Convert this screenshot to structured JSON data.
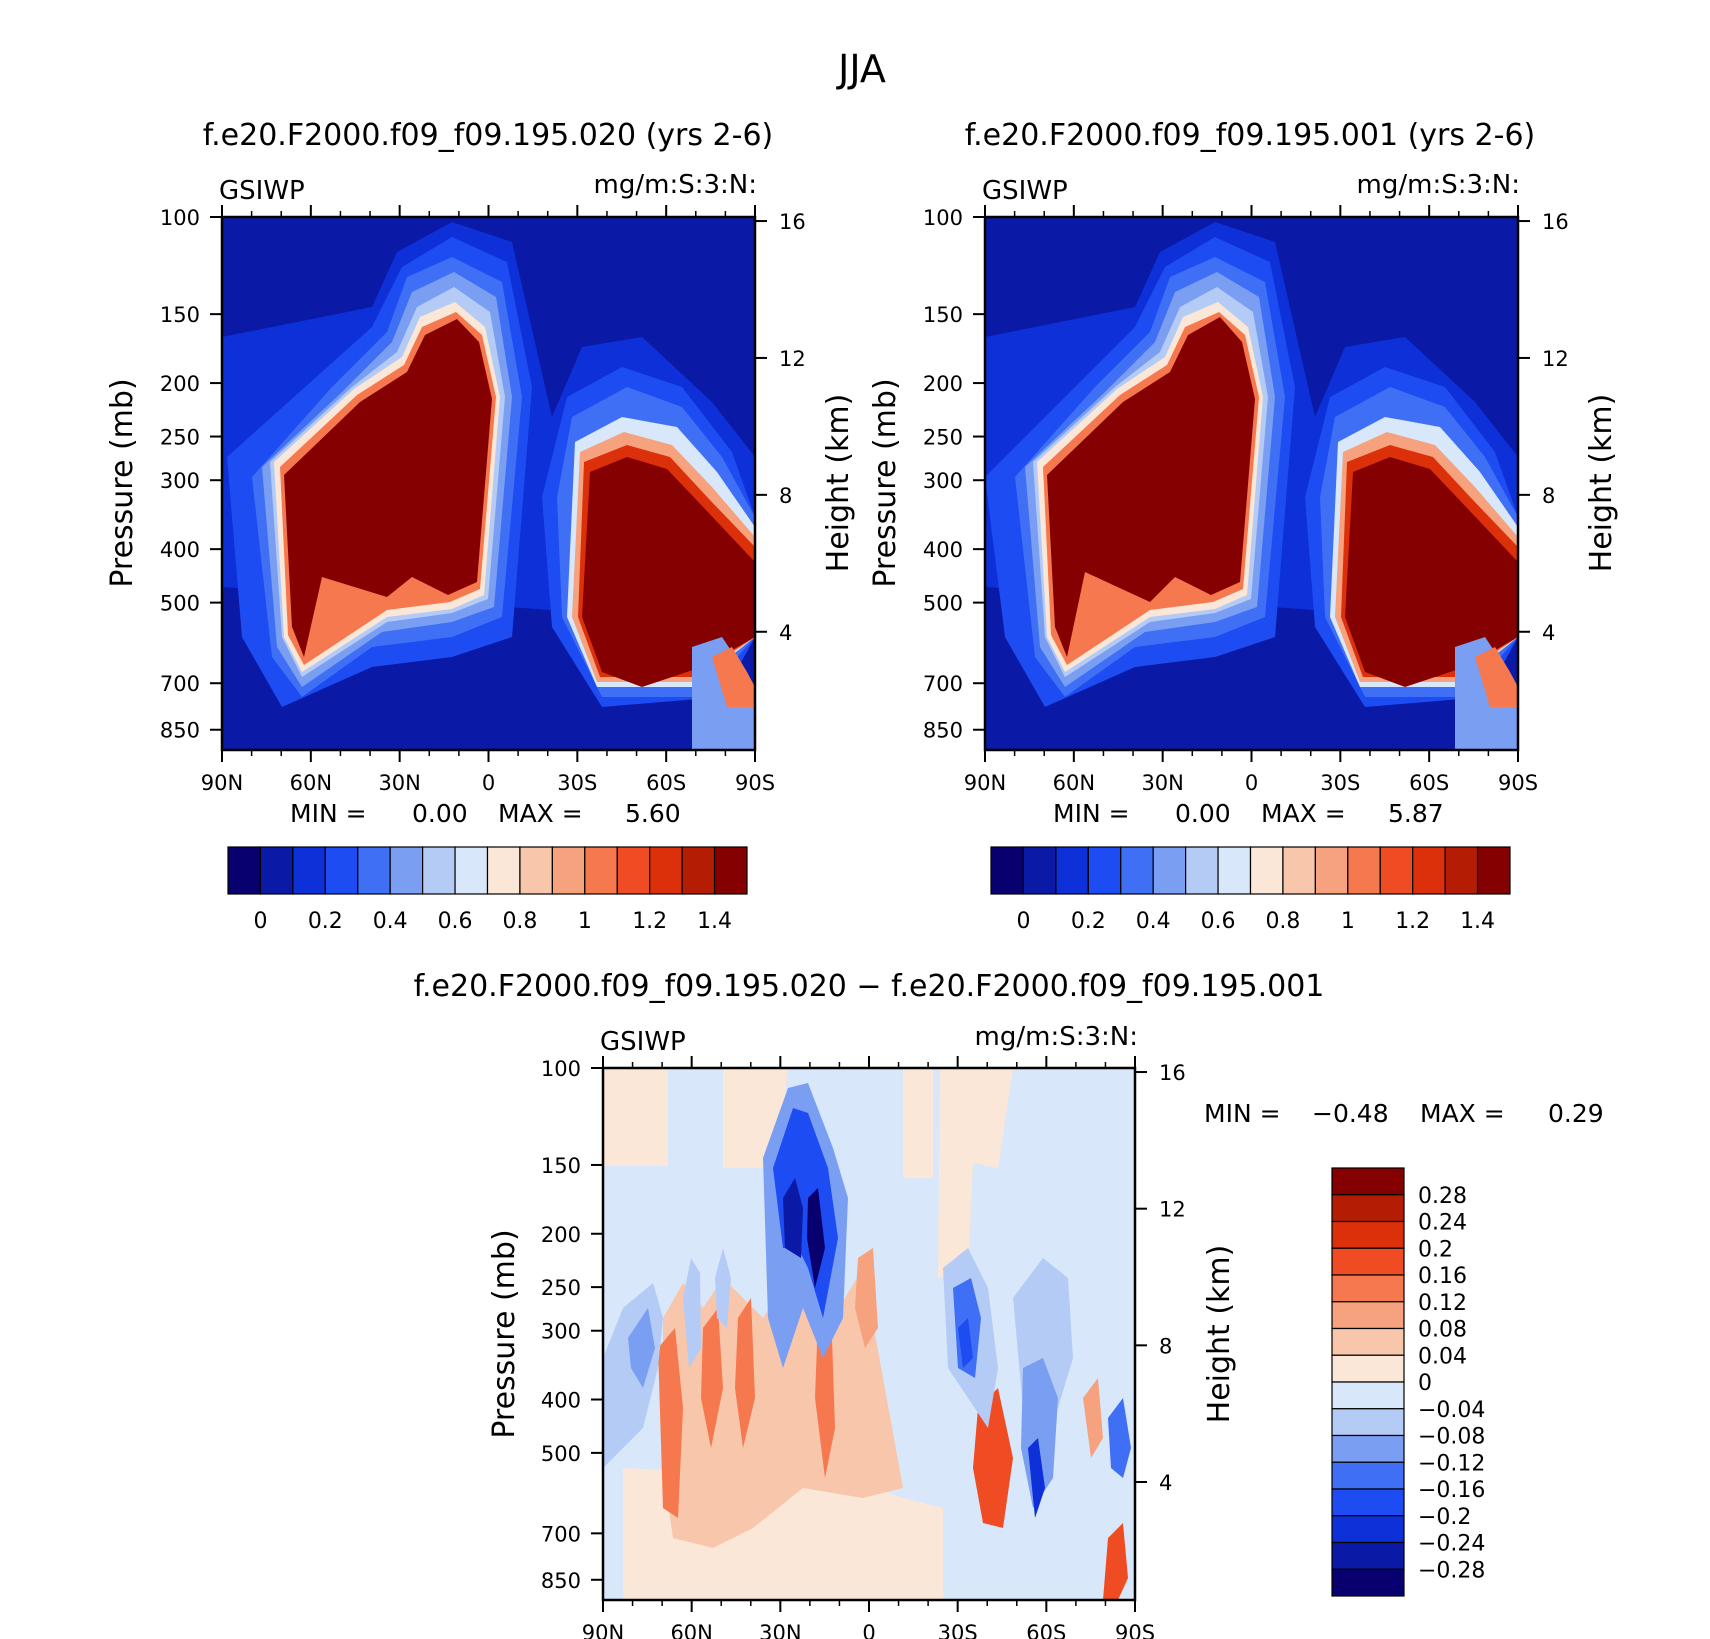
{
  "figure_title": "JJA",
  "ticks": {
    "pressure": [
      "100",
      "150",
      "200",
      "250",
      "300",
      "400",
      "500",
      "700",
      "850"
    ],
    "height": [
      "16",
      "12",
      "8",
      "4"
    ],
    "lat": [
      "90N",
      "60N",
      "30N",
      "0",
      "30S",
      "60S",
      "90S"
    ],
    "pressure_label": "Pressure (mb)",
    "height_label": "Height (km)"
  },
  "colors": {
    "seq": [
      "#08006e",
      "#0a1aa6",
      "#0d30d8",
      "#1c4cf2",
      "#3f6ff5",
      "#7a9ef2",
      "#b4cbf6",
      "#d9e7fa",
      "#fbe7d7",
      "#f8c6ab",
      "#f6a27e",
      "#f5784f",
      "#f04c24",
      "#dc300a",
      "#b41d04",
      "#850000"
    ]
  },
  "chart_data": [
    {
      "type": "heatmap",
      "title": "f.e20.F2000.f09_f09.195.020 (yrs 2-6)",
      "left_label": "GSIWP",
      "right_label": "mg/m:S:3:N:",
      "xlabel": "",
      "ylabel": "Pressure (mb)",
      "y2label": "Height (km)",
      "min_text": "MIN =",
      "min_value": "0.00",
      "max_text": "MAX =",
      "max_value": "5.60",
      "colorbar_labels": [
        "0",
        "0.2",
        "0.4",
        "0.6",
        "0.8",
        "1",
        "1.2",
        "1.4"
      ],
      "contour_levels": [
        0,
        0.1,
        0.2,
        0.3,
        0.4,
        0.5,
        0.6,
        0.7,
        0.8,
        0.9,
        1.0,
        1.1,
        1.2,
        1.3,
        1.4
      ],
      "x_range": [
        "90N",
        "90S"
      ],
      "y_range_mb": [
        100,
        925
      ]
    },
    {
      "type": "heatmap",
      "title": "f.e20.F2000.f09_f09.195.001 (yrs 2-6)",
      "left_label": "GSIWP",
      "right_label": "mg/m:S:3:N:",
      "xlabel": "",
      "ylabel": "Pressure (mb)",
      "y2label": "Height (km)",
      "min_text": "MIN =",
      "min_value": "0.00",
      "max_text": "MAX =",
      "max_value": "5.87",
      "colorbar_labels": [
        "0",
        "0.2",
        "0.4",
        "0.6",
        "0.8",
        "1",
        "1.2",
        "1.4"
      ],
      "contour_levels": [
        0,
        0.1,
        0.2,
        0.3,
        0.4,
        0.5,
        0.6,
        0.7,
        0.8,
        0.9,
        1.0,
        1.1,
        1.2,
        1.3,
        1.4
      ],
      "x_range": [
        "90N",
        "90S"
      ],
      "y_range_mb": [
        100,
        925
      ]
    },
    {
      "type": "heatmap",
      "title": "f.e20.F2000.f09_f09.195.020 − f.e20.F2000.f09_f09.195.001",
      "left_label": "GSIWP",
      "right_label": "mg/m:S:3:N:",
      "xlabel": "",
      "ylabel": "Pressure (mb)",
      "y2label": "Height (km)",
      "min_text": "MIN =",
      "min_value": "−0.48",
      "max_text": "MAX =",
      "max_value": "0.29",
      "colorbar_labels": [
        "0.28",
        "0.24",
        "0.2",
        "0.16",
        "0.12",
        "0.08",
        "0.04",
        "0",
        "−0.04",
        "−0.08",
        "−0.12",
        "−0.16",
        "−0.2",
        "−0.24",
        "−0.28"
      ],
      "contour_levels": [
        -0.28,
        -0.24,
        -0.2,
        -0.16,
        -0.12,
        -0.08,
        -0.04,
        0,
        0.04,
        0.08,
        0.12,
        0.16,
        0.2,
        0.24,
        0.28
      ],
      "x_range": [
        "90N",
        "90S"
      ],
      "y_range_mb": [
        100,
        925
      ]
    }
  ]
}
